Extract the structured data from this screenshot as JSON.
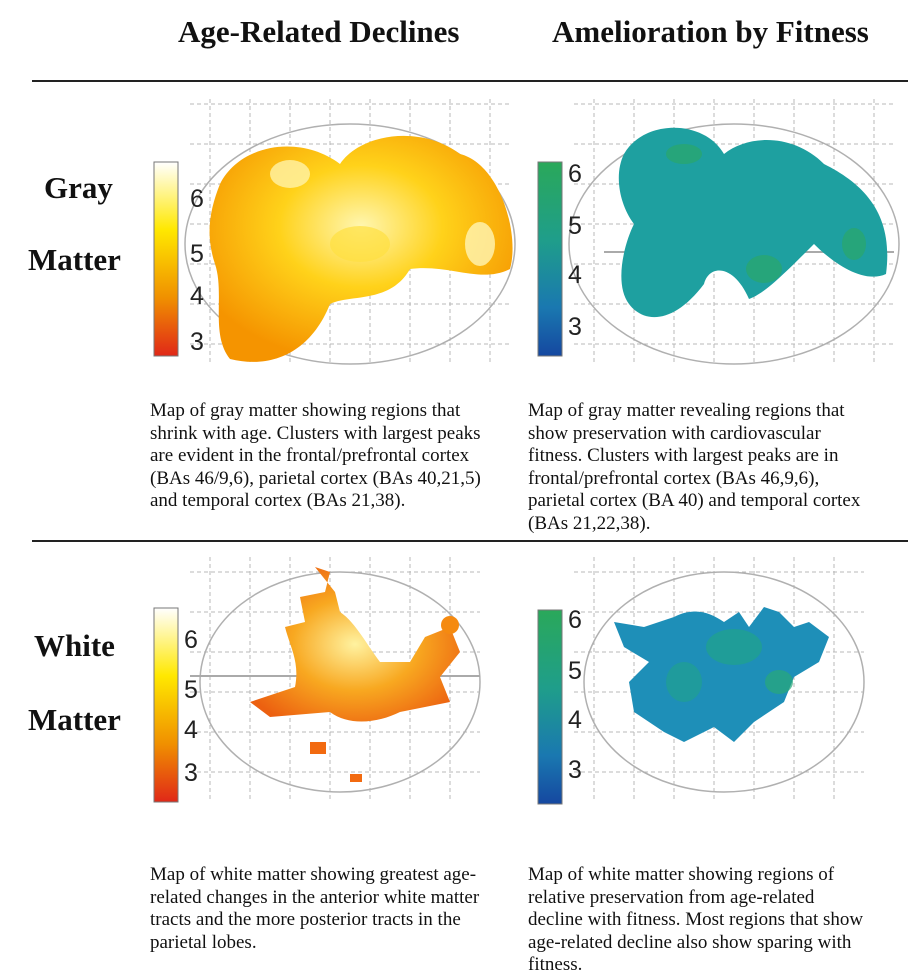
{
  "headers": {
    "left": "Age-Related Declines",
    "right": "Amelioration by Fitness"
  },
  "rows": {
    "gray": {
      "line1": "Gray",
      "line2": "Matter"
    },
    "white": {
      "line1": "White",
      "line2": "Matter"
    }
  },
  "colorbars": {
    "age_ticks": [
      "6",
      "5",
      "4",
      "3"
    ],
    "fitness_ticks": [
      "6",
      "5",
      "4",
      "3"
    ]
  },
  "captions": {
    "gray_age": "Map of gray matter showing regions that shrink with age.  Clusters with largest peaks are evident in the frontal/prefrontal cortex (BAs 46/9,6), parietal cortex (BAs 40,21,5) and temporal cortex (BAs 21,38).",
    "gray_fitness": "Map of gray matter revealing regions that show preservation with cardiovascular fitness. Clusters with largest peaks are in frontal/prefrontal cortex (BAs 46,9,6), parietal cortex (BA 40) and temporal cortex (BAs 21,22,38).",
    "white_age": "Map of white matter showing greatest age-related changes in the anterior white matter tracts and the more posterior tracts in the parietal lobes.",
    "white_fitness": "Map of white matter showing regions of relative preservation from age-related decline with fitness. Most regions that show age-related decline also show sparing with fitness."
  },
  "colors": {
    "age_scale": [
      "#ffffff",
      "#ffe800",
      "#f09000",
      "#e02818"
    ],
    "fitness_scale": [
      "#2aa85a",
      "#1f9e8a",
      "#1a78b0",
      "#1548a0"
    ]
  }
}
